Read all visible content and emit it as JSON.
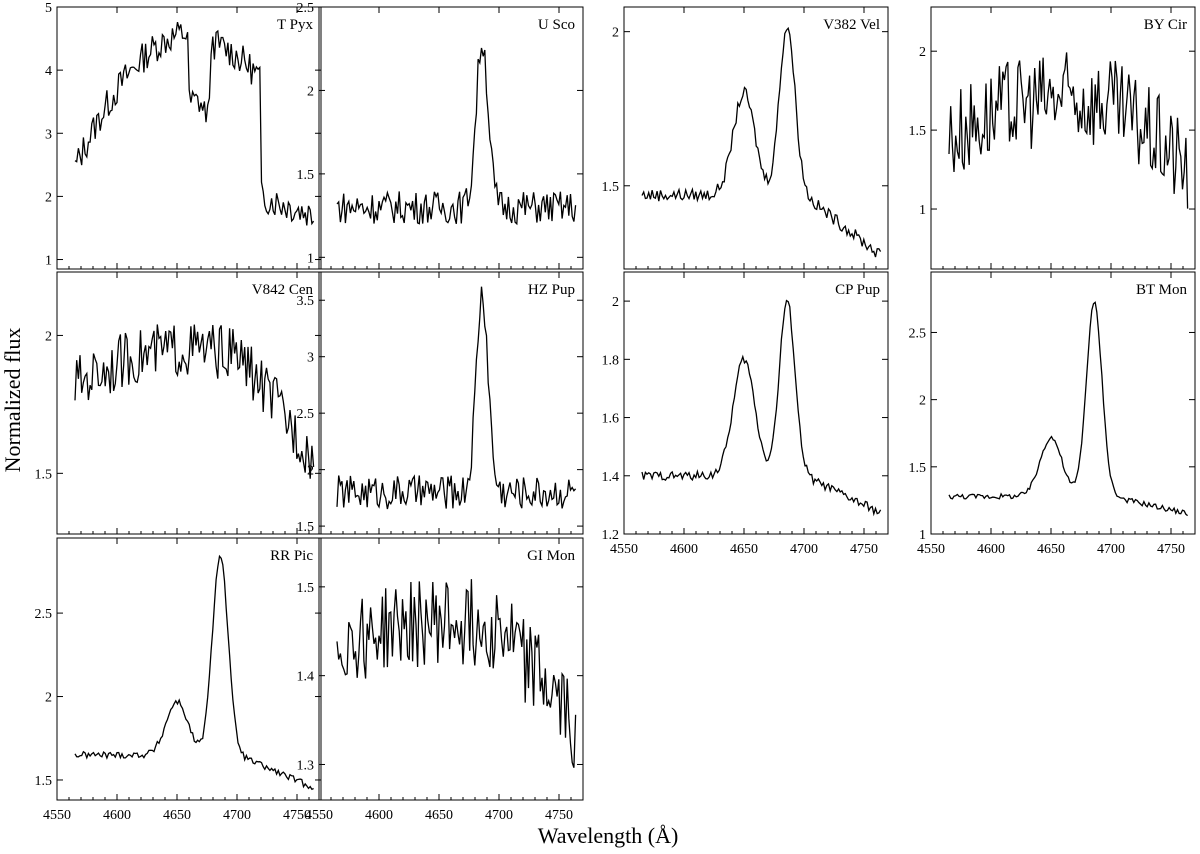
{
  "figure": {
    "ylabel": "Normalized flux",
    "xlabel": "Wavelength (Å)",
    "xlim": [
      4550,
      4770
    ],
    "xticks": [
      4550,
      4600,
      4650,
      4700,
      4750
    ]
  },
  "chart_data": [
    {
      "type": "line",
      "name": "T Pyx",
      "ylim": [
        0.85,
        5.0
      ],
      "yticks": [
        1,
        2,
        3,
        4,
        5
      ],
      "xtick_labels": false,
      "shape": "tpyx",
      "noise": 0.25,
      "peak1": 4.6,
      "peak2": 4.45,
      "base": 2.0,
      "end": 1.7,
      "x_range": [
        4565,
        4765
      ]
    },
    {
      "type": "line",
      "name": "U Sco",
      "ylim": [
        0.93,
        2.5
      ],
      "yticks": [
        1,
        1.5,
        2,
        2.5
      ],
      "xtick_labels": false,
      "shape": "usco",
      "noise": 0.1,
      "base": 1.3,
      "peak2": 2.3,
      "x_range": [
        4565,
        4765
      ]
    },
    {
      "type": "line",
      "name": "V382 Vel",
      "ylim": [
        1.23,
        2.08
      ],
      "yticks": [
        1.5,
        2
      ],
      "xtick_labels": false,
      "shape": "double",
      "noise": 0.02,
      "base": 1.47,
      "peak1": 1.8,
      "peak2": 2.02,
      "end": 1.27,
      "x_range": [
        4565,
        4765
      ]
    },
    {
      "type": "line",
      "name": "BY Cir",
      "ylim": [
        0.62,
        2.28
      ],
      "yticks": [
        1,
        1.5,
        2
      ],
      "xtick_labels": false,
      "shape": "noisyhump",
      "noise": 0.3,
      "base": 1.3,
      "peak1": 1.7,
      "peak2": 1.7,
      "end": 1.15,
      "x_range": [
        4565,
        4765
      ]
    },
    {
      "type": "line",
      "name": "V842 Cen",
      "ylim": [
        1.28,
        2.23
      ],
      "yticks": [
        1.5,
        2
      ],
      "xtick_labels": false,
      "shape": "noisyhump",
      "noise": 0.1,
      "base": 1.75,
      "peak1": 1.95,
      "peak2": 1.9,
      "end": 1.5,
      "x_range": [
        4565,
        4765
      ]
    },
    {
      "type": "line",
      "name": "HZ Pup",
      "ylim": [
        1.43,
        3.75
      ],
      "yticks": [
        1.5,
        2,
        2.5,
        3,
        3.5
      ],
      "xtick_labels": false,
      "shape": "usco",
      "noise": 0.15,
      "base": 1.8,
      "peak2": 3.55,
      "x_range": [
        4565,
        4765
      ]
    },
    {
      "type": "line",
      "name": "CP Pup",
      "ylim": [
        1.2,
        2.1
      ],
      "yticks": [
        1.2,
        1.4,
        1.6,
        1.8,
        2
      ],
      "xtick_labels": true,
      "shape": "double",
      "noise": 0.015,
      "base": 1.4,
      "peak1": 1.8,
      "peak2": 2.0,
      "end": 1.27,
      "x_range": [
        4565,
        4765
      ]
    },
    {
      "type": "line",
      "name": "BT Mon",
      "ylim": [
        1.0,
        2.95
      ],
      "yticks": [
        1,
        1.5,
        2,
        2.5
      ],
      "xtick_labels": true,
      "shape": "double",
      "noise": 0.02,
      "base": 1.28,
      "peak1": 1.72,
      "peak2": 2.72,
      "end": 1.15,
      "x_range": [
        4565,
        4765
      ]
    },
    {
      "type": "line",
      "name": "RR Pic",
      "ylim": [
        1.38,
        2.95
      ],
      "yticks": [
        1.5,
        2,
        2.5
      ],
      "xtick_labels": true,
      "shape": "double",
      "noise": 0.02,
      "base": 1.65,
      "peak1": 1.97,
      "peak2": 2.85,
      "end": 1.45,
      "x_range": [
        4565,
        4765
      ]
    },
    {
      "type": "line",
      "name": "GI Mon",
      "ylim": [
        1.26,
        1.555
      ],
      "yticks": [
        1.3,
        1.4,
        1.5
      ],
      "xtick_labels": true,
      "shape": "noisyhump",
      "noise": 0.05,
      "base": 1.42,
      "peak1": 1.46,
      "peak2": 1.46,
      "end": 1.33,
      "x_range": [
        4565,
        4765
      ]
    }
  ]
}
